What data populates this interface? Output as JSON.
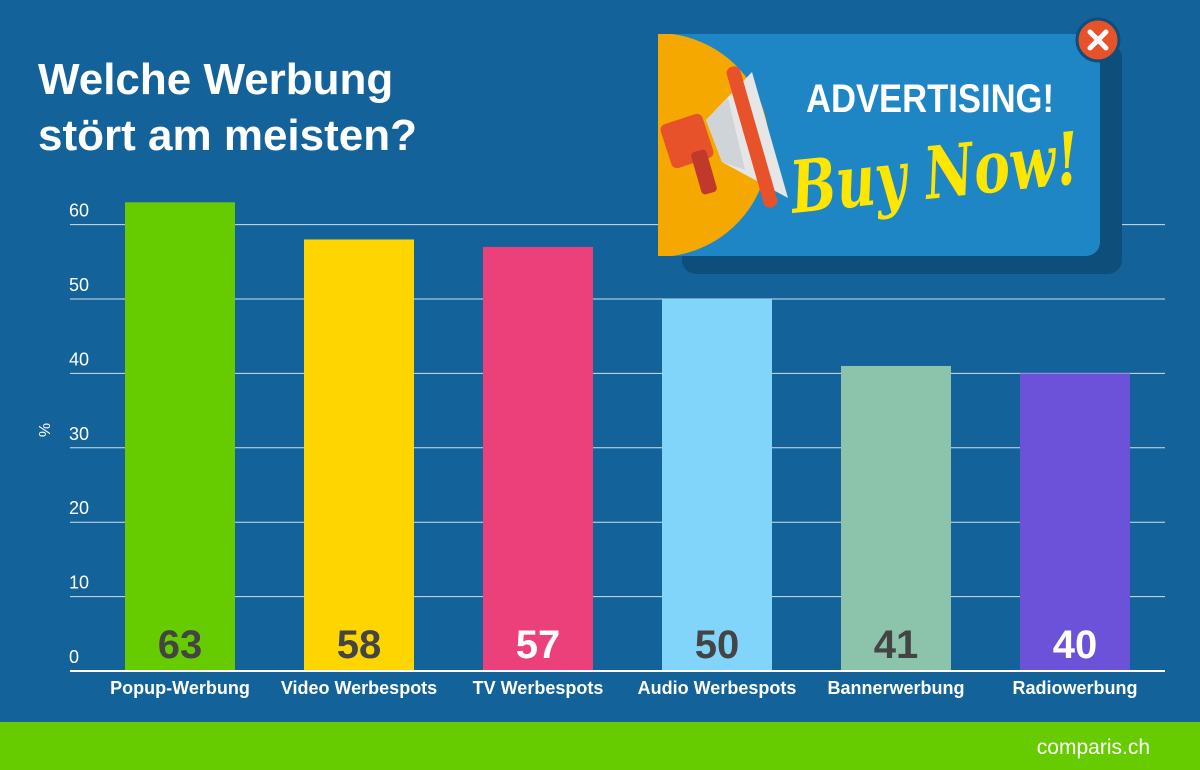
{
  "title_lines": [
    "Welche Werbung",
    "stört am meisten?"
  ],
  "ad": {
    "headline": "ADVERTISING!",
    "cta": "Buy Now!",
    "close_icon": "close-icon",
    "megaphone_icon": "megaphone-icon",
    "colors": {
      "panel": "#1f86c6",
      "shadow": "#0e4e7a",
      "close": "#e8522a",
      "headline": "#ffffff",
      "cta": "#ffe600",
      "megaphone_disc": "#f5a900"
    }
  },
  "footer": {
    "logo": "comparis.ch",
    "color": "#66cc00"
  },
  "chart_data": {
    "type": "bar",
    "title": "Welche Werbung stört am meisten?",
    "categories": [
      "Popup-Werbung",
      "Video Werbespots",
      "TV Werbespots",
      "Audio Werbespots",
      "Bannerwerbung",
      "Radiowerbung"
    ],
    "values": [
      63,
      58,
      57,
      50,
      41,
      40
    ],
    "bar_colors": [
      "#66cc00",
      "#ffd500",
      "#ec407a",
      "#81d4fa",
      "#8bc4ab",
      "#6c52d9"
    ],
    "label_colors": [
      "#444444",
      "#444444",
      "#ffffff",
      "#444444",
      "#444444",
      "#ffffff"
    ],
    "ylabel": "%",
    "yticks": [
      0,
      10,
      20,
      30,
      40,
      50,
      60
    ],
    "ylim": [
      0,
      60
    ],
    "grid": true,
    "background": "#13639a"
  }
}
